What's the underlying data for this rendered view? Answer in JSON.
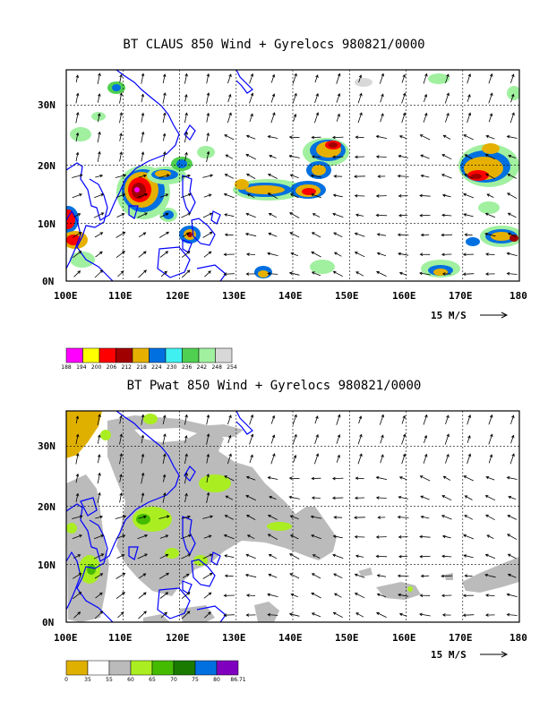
{
  "panels": [
    {
      "title": "BT CLAUS 850 Wind + Gyrelocs 980821/0000",
      "y_ticks": [
        "30N",
        "20N",
        "10N",
        "0N"
      ],
      "x_ticks": [
        "100E",
        "110E",
        "120E",
        "130E",
        "140E",
        "150E",
        "160E",
        "170E",
        "180"
      ],
      "vector_ref": "15 M/S",
      "colorbar": {
        "labels": [
          "188",
          "194",
          "200",
          "206",
          "212",
          "218",
          "224",
          "230",
          "236",
          "242",
          "248",
          "254"
        ],
        "colors": [
          "#ff00ff",
          "#ffff00",
          "#ff0000",
          "#a00000",
          "#e6b000",
          "#0070e0",
          "#40f0f0",
          "#50d050",
          "#a0f0a0",
          "#d8d8d8"
        ]
      }
    },
    {
      "title": "BT Pwat 850 Wind + Gyrelocs 980821/0000",
      "y_ticks": [
        "30N",
        "20N",
        "10N",
        "0N"
      ],
      "x_ticks": [
        "100E",
        "110E",
        "120E",
        "130E",
        "140E",
        "150E",
        "160E",
        "170E",
        "180"
      ],
      "vector_ref": "15 M/S",
      "colorbar": {
        "labels": [
          "0",
          "35",
          "55",
          "60",
          "65",
          "70",
          "75",
          "80",
          "86.71"
        ],
        "colors": [
          "#e0b000",
          "#ffffff",
          "#bbbbbb",
          "#aaee22",
          "#44bb00",
          "#1a7a00",
          "#0070e0",
          "#8000c0"
        ]
      }
    }
  ]
}
